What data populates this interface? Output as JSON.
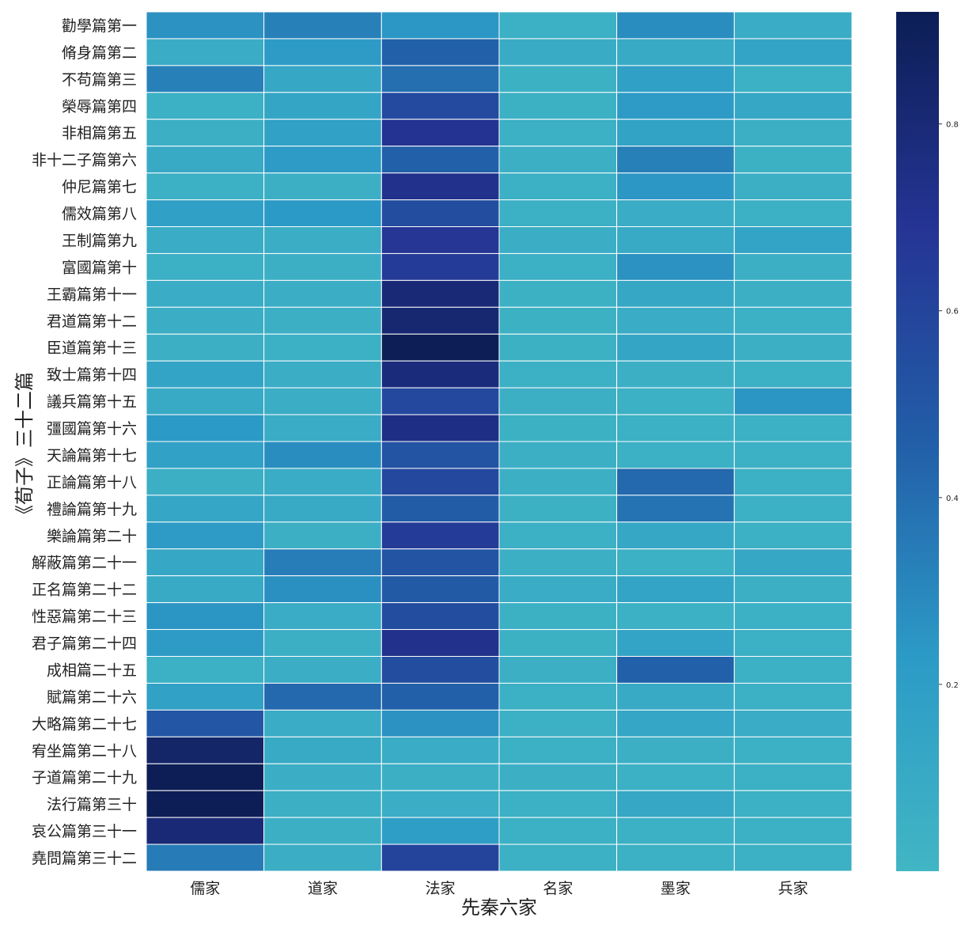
{
  "chart_data": {
    "type": "heatmap",
    "title": "",
    "xlabel": "先秦六家",
    "ylabel": "《荀子》三十二篇",
    "x_categories": [
      "儒家",
      "道家",
      "法家",
      "名家",
      "墨家",
      "兵家"
    ],
    "y_categories": [
      "勸學篇第一",
      "脩身篇第二",
      "不苟篇第三",
      "榮辱篇第四",
      "非相篇第五",
      "非十二子篇第六",
      "仲尼篇第七",
      "儒效篇第八",
      "王制篇第九",
      "富國篇第十",
      "王霸篇第十一",
      "君道篇第十二",
      "臣道篇第十三",
      "致士篇第十四",
      "議兵篇第十五",
      "彊國篇第十六",
      "天論篇第十七",
      "正論篇第十八",
      "禮論篇第十九",
      "樂論篇第二十",
      "解蔽篇第二十一",
      "正名篇第二十二",
      "性惡篇第二十三",
      "君子篇第二十四",
      "成相篇二十五",
      "賦篇第二十六",
      "大略篇第二十七",
      "宥坐篇第二十八",
      "子道篇第二十九",
      "法行篇第三十",
      "哀公篇第三十一",
      "堯問篇第三十二"
    ],
    "values": [
      [
        0.26,
        0.33,
        0.24,
        0.05,
        0.28,
        0.08
      ],
      [
        0.08,
        0.22,
        0.45,
        0.09,
        0.1,
        0.15
      ],
      [
        0.33,
        0.12,
        0.4,
        0.04,
        0.18,
        0.05
      ],
      [
        0.05,
        0.14,
        0.57,
        0.04,
        0.22,
        0.12
      ],
      [
        0.06,
        0.17,
        0.7,
        0.05,
        0.16,
        0.06
      ],
      [
        0.1,
        0.22,
        0.45,
        0.06,
        0.33,
        0.04
      ],
      [
        0.05,
        0.06,
        0.72,
        0.05,
        0.24,
        0.06
      ],
      [
        0.18,
        0.23,
        0.55,
        0.05,
        0.08,
        0.05
      ],
      [
        0.08,
        0.07,
        0.68,
        0.07,
        0.1,
        0.15
      ],
      [
        0.05,
        0.06,
        0.65,
        0.05,
        0.26,
        0.06
      ],
      [
        0.08,
        0.07,
        0.8,
        0.04,
        0.12,
        0.06
      ],
      [
        0.07,
        0.06,
        0.82,
        0.04,
        0.08,
        0.05
      ],
      [
        0.06,
        0.05,
        0.92,
        0.04,
        0.14,
        0.06
      ],
      [
        0.15,
        0.07,
        0.78,
        0.05,
        0.06,
        0.05
      ],
      [
        0.1,
        0.07,
        0.58,
        0.06,
        0.05,
        0.25
      ],
      [
        0.23,
        0.08,
        0.75,
        0.04,
        0.05,
        0.05
      ],
      [
        0.17,
        0.28,
        0.52,
        0.06,
        0.05,
        0.05
      ],
      [
        0.06,
        0.08,
        0.58,
        0.06,
        0.42,
        0.05
      ],
      [
        0.13,
        0.1,
        0.47,
        0.04,
        0.38,
        0.05
      ],
      [
        0.22,
        0.06,
        0.65,
        0.05,
        0.12,
        0.05
      ],
      [
        0.12,
        0.34,
        0.52,
        0.06,
        0.05,
        0.12
      ],
      [
        0.1,
        0.27,
        0.48,
        0.08,
        0.15,
        0.06
      ],
      [
        0.25,
        0.08,
        0.55,
        0.04,
        0.05,
        0.05
      ],
      [
        0.22,
        0.06,
        0.72,
        0.04,
        0.15,
        0.05
      ],
      [
        0.05,
        0.07,
        0.55,
        0.06,
        0.45,
        0.05
      ],
      [
        0.17,
        0.42,
        0.45,
        0.05,
        0.1,
        0.05
      ],
      [
        0.5,
        0.08,
        0.26,
        0.05,
        0.13,
        0.08
      ],
      [
        0.85,
        0.1,
        0.08,
        0.05,
        0.06,
        0.05
      ],
      [
        0.92,
        0.07,
        0.06,
        0.06,
        0.05,
        0.05
      ],
      [
        0.92,
        0.06,
        0.07,
        0.05,
        0.12,
        0.05
      ],
      [
        0.8,
        0.06,
        0.2,
        0.05,
        0.05,
        0.05
      ],
      [
        0.35,
        0.07,
        0.6,
        0.05,
        0.05,
        0.05
      ]
    ],
    "colorbar": {
      "ticks": [
        0.2,
        0.4,
        0.6,
        0.8
      ],
      "tick_labels": [
        "0.2",
        "0.4",
        "0.6",
        "0.8"
      ],
      "range": [
        0.0,
        0.92
      ],
      "colormap_stops": [
        "#41b6c4",
        "#2c9ac6",
        "#225ea8",
        "#253494",
        "#0c1e55"
      ]
    },
    "grid": false,
    "cell_border_color": "#ffffff"
  }
}
